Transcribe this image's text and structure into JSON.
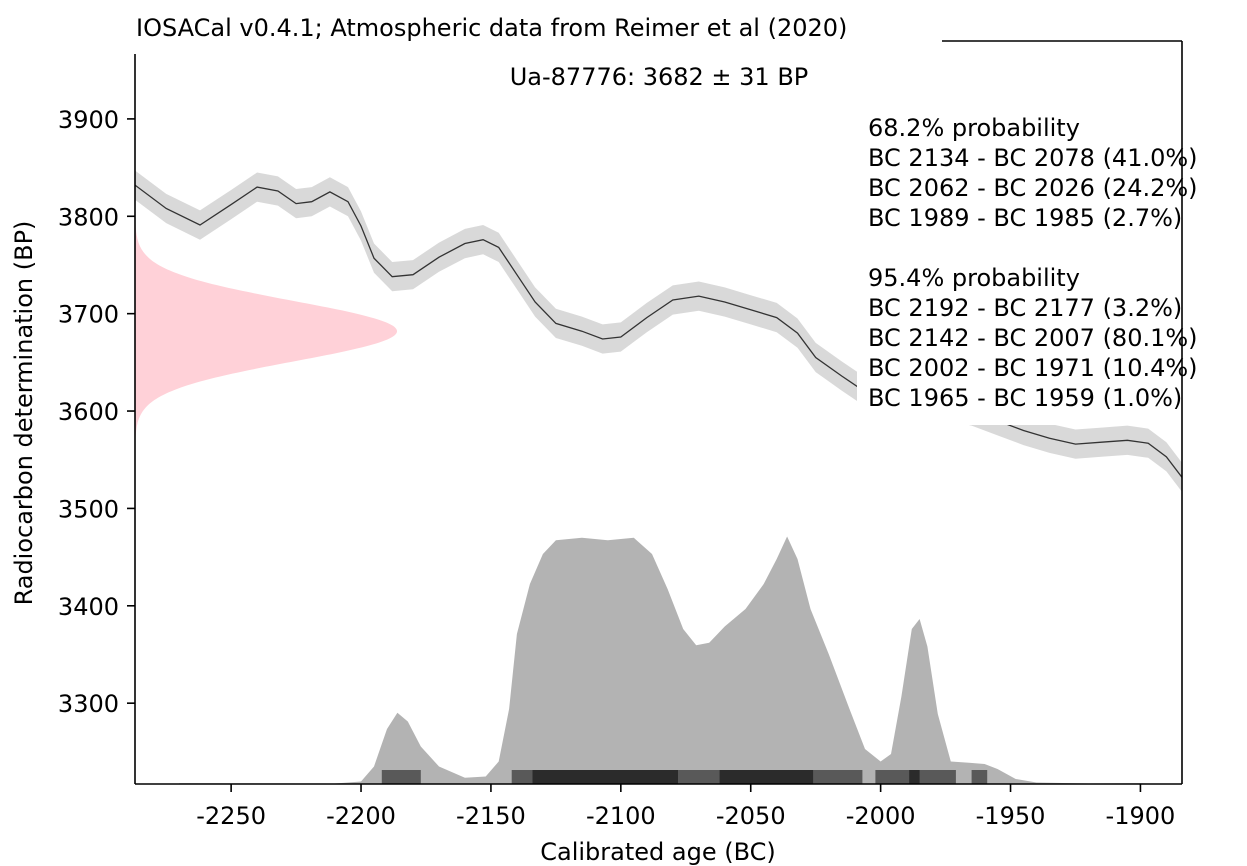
{
  "header": {
    "source_title": "IOSACal v0.4.1; Atmospheric data from Reimer et al (2020)",
    "sample_title": "Ua-87776: 3682 ± 31 BP"
  },
  "chart_data": {
    "type": "area",
    "xlabel": "Calibrated age (BC)",
    "ylabel": "Radiocarbon determination (BP)",
    "xlim": [
      -2287,
      -1884
    ],
    "ylim": [
      3217,
      3980
    ],
    "x_ticks": [
      -2250,
      -2200,
      -2150,
      -2100,
      -2050,
      -2000,
      -1950,
      -1900
    ],
    "x_tick_labels": [
      "-2250",
      "-2200",
      "-2150",
      "-2100",
      "-2050",
      "-2000",
      "-1950",
      "-1900"
    ],
    "y_ticks": [
      3300,
      3400,
      3500,
      3600,
      3700,
      3800,
      3900
    ],
    "y_tick_labels": [
      "3300",
      "3400",
      "3500",
      "3600",
      "3700",
      "3800",
      "3900"
    ],
    "grid": false,
    "determination": {
      "mean": 3682,
      "sigma": 31
    },
    "calibration_curve": [
      [
        -2287,
        3832
      ],
      [
        -2275,
        3808
      ],
      [
        -2262,
        3791
      ],
      [
        -2250,
        3812
      ],
      [
        -2240,
        3830
      ],
      [
        -2232,
        3826
      ],
      [
        -2225,
        3813
      ],
      [
        -2219,
        3815
      ],
      [
        -2212,
        3825
      ],
      [
        -2205,
        3815
      ],
      [
        -2200,
        3790
      ],
      [
        -2195,
        3757
      ],
      [
        -2188,
        3738
      ],
      [
        -2180,
        3740
      ],
      [
        -2170,
        3758
      ],
      [
        -2160,
        3772
      ],
      [
        -2153,
        3776
      ],
      [
        -2147,
        3768
      ],
      [
        -2140,
        3740
      ],
      [
        -2133,
        3712
      ],
      [
        -2125,
        3690
      ],
      [
        -2115,
        3682
      ],
      [
        -2107,
        3674
      ],
      [
        -2100,
        3676
      ],
      [
        -2090,
        3696
      ],
      [
        -2080,
        3714
      ],
      [
        -2070,
        3718
      ],
      [
        -2060,
        3712
      ],
      [
        -2050,
        3704
      ],
      [
        -2040,
        3696
      ],
      [
        -2032,
        3680
      ],
      [
        -2025,
        3655
      ],
      [
        -2015,
        3636
      ],
      [
        -2005,
        3618
      ],
      [
        -1995,
        3612
      ],
      [
        -1985,
        3608
      ],
      [
        -1975,
        3606
      ],
      [
        -1965,
        3600
      ],
      [
        -1955,
        3590
      ],
      [
        -1945,
        3580
      ],
      [
        -1935,
        3572
      ],
      [
        -1925,
        3566
      ],
      [
        -1915,
        3568
      ],
      [
        -1905,
        3570
      ],
      [
        -1897,
        3567
      ],
      [
        -1890,
        3553
      ],
      [
        -1884,
        3532
      ]
    ],
    "curve_sigma": 15,
    "calibrated_distribution": [
      [
        -2270,
        0.003
      ],
      [
        -2210,
        0.002
      ],
      [
        -2200,
        0.01
      ],
      [
        -2195,
        0.07
      ],
      [
        -2190,
        0.22
      ],
      [
        -2186,
        0.285
      ],
      [
        -2182,
        0.25
      ],
      [
        -2177,
        0.15
      ],
      [
        -2170,
        0.07
      ],
      [
        -2160,
        0.025
      ],
      [
        -2152,
        0.03
      ],
      [
        -2147,
        0.09
      ],
      [
        -2143,
        0.3
      ],
      [
        -2140,
        0.6
      ],
      [
        -2135,
        0.8
      ],
      [
        -2130,
        0.92
      ],
      [
        -2125,
        0.975
      ],
      [
        -2115,
        0.985
      ],
      [
        -2105,
        0.975
      ],
      [
        -2095,
        0.985
      ],
      [
        -2088,
        0.92
      ],
      [
        -2082,
        0.78
      ],
      [
        -2076,
        0.62
      ],
      [
        -2071,
        0.555
      ],
      [
        -2066,
        0.565
      ],
      [
        -2060,
        0.63
      ],
      [
        -2052,
        0.7
      ],
      [
        -2045,
        0.8
      ],
      [
        -2040,
        0.9
      ],
      [
        -2036,
        0.99
      ],
      [
        -2032,
        0.9
      ],
      [
        -2027,
        0.7
      ],
      [
        -2020,
        0.52
      ],
      [
        -2012,
        0.3
      ],
      [
        -2006,
        0.14
      ],
      [
        -2000,
        0.09
      ],
      [
        -1996,
        0.12
      ],
      [
        -1992,
        0.35
      ],
      [
        -1988,
        0.62
      ],
      [
        -1985,
        0.66
      ],
      [
        -1982,
        0.55
      ],
      [
        -1978,
        0.28
      ],
      [
        -1973,
        0.09
      ],
      [
        -1966,
        0.085
      ],
      [
        -1960,
        0.08
      ],
      [
        -1955,
        0.06
      ],
      [
        -1948,
        0.02
      ],
      [
        -1940,
        0.006
      ],
      [
        -1920,
        0.002
      ],
      [
        -1900,
        0.003
      ],
      [
        -1890,
        0.001
      ]
    ],
    "ranges_68": [
      [
        -2134,
        -2078
      ],
      [
        -2062,
        -2026
      ],
      [
        -1989,
        -1985
      ]
    ],
    "ranges_95": [
      [
        -2192,
        -2177
      ],
      [
        -2142,
        -2007
      ],
      [
        -2002,
        -1971
      ],
      [
        -1965,
        -1959
      ]
    ],
    "colors": {
      "curve_line": "#333333",
      "curve_band": "#d9d9d9",
      "determination": "#ffd1d8",
      "distribution": "#b3b3b3",
      "range_68": "#2b2b2b",
      "range_95": "#595959"
    },
    "legend": {
      "placement": "top-right",
      "p68_title": "68.2% probability",
      "p68_lines": [
        "BC 2134 - BC 2078 (41.0%)",
        "BC 2062 - BC 2026 (24.2%)",
        "BC 1989 - BC 1985 (2.7%)"
      ],
      "p95_title": "95.4% probability",
      "p95_lines": [
        "BC 2192 - BC 2177 (3.2%)",
        "BC 2142 - BC 2007 (80.1%)",
        "BC 2002 - BC 1971 (10.4%)",
        "BC 1965 - BC 1959 (1.0%)"
      ]
    }
  }
}
